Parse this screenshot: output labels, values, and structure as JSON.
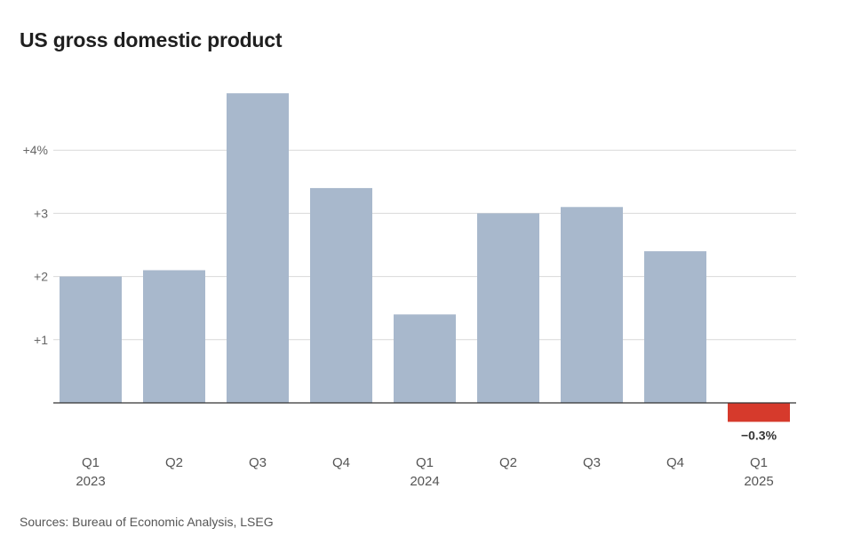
{
  "chart_data": {
    "type": "bar",
    "title": "US gross domestic product",
    "source": "Sources: Bureau of Economic Analysis, LSEG",
    "categories": [
      {
        "quarter": "Q1",
        "year": "2023"
      },
      {
        "quarter": "Q2",
        "year": ""
      },
      {
        "quarter": "Q3",
        "year": ""
      },
      {
        "quarter": "Q4",
        "year": ""
      },
      {
        "quarter": "Q1",
        "year": "2024"
      },
      {
        "quarter": "Q2",
        "year": ""
      },
      {
        "quarter": "Q3",
        "year": ""
      },
      {
        "quarter": "Q4",
        "year": ""
      },
      {
        "quarter": "Q1",
        "year": "2025"
      }
    ],
    "values": [
      2.0,
      2.1,
      4.9,
      3.4,
      1.4,
      3.0,
      3.1,
      2.4,
      -0.3
    ],
    "data_labels": [
      {
        "index": 8,
        "text": "−0.3%"
      }
    ],
    "yticks": [
      {
        "value": 1,
        "label": "+1"
      },
      {
        "value": 2,
        "label": "+2"
      },
      {
        "value": 3,
        "label": "+3"
      },
      {
        "value": 4,
        "label": "+4%"
      }
    ],
    "ylim": [
      -0.3,
      5.0
    ],
    "grid": true,
    "colors": {
      "positive": "#a8b8cc",
      "negative": "#d63a2c",
      "grid": "#d9d9d9",
      "baseline": "#333333"
    }
  }
}
